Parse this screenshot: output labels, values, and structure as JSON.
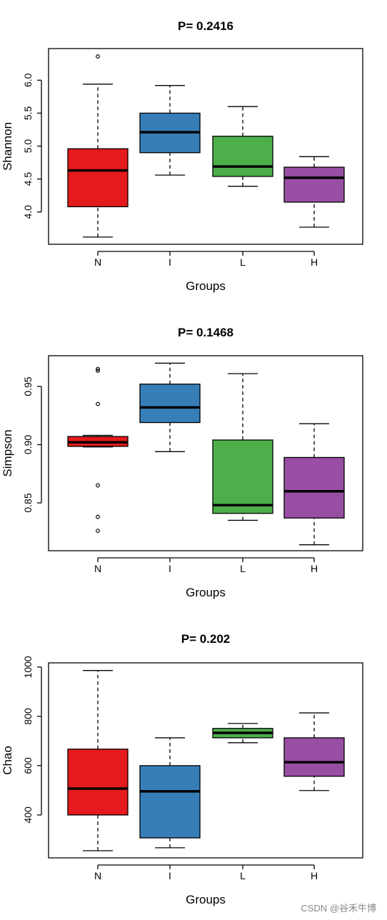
{
  "chart_data": [
    {
      "type": "box",
      "title": "P= 0.2416",
      "y_label": "Shannon",
      "x_label": "Groups",
      "categories": [
        "N",
        "I",
        "L",
        "H"
      ],
      "colors": [
        "#e41a1c",
        "#377eb8",
        "#4daf4a",
        "#984ea3"
      ],
      "whisker_low": [
        3.62,
        4.56,
        4.39,
        3.77
      ],
      "q1": [
        4.08,
        4.9,
        4.54,
        4.15
      ],
      "median": [
        4.63,
        5.21,
        4.69,
        4.52
      ],
      "q3": [
        4.96,
        5.5,
        5.15,
        4.68
      ],
      "whisker_high": [
        5.94,
        5.92,
        5.6,
        4.84
      ],
      "outliers": [
        [
          6.36
        ],
        [],
        [],
        []
      ],
      "ylim": [
        3.51,
        6.48
      ],
      "yticks": [
        {
          "value": 4,
          "label": "4.0"
        },
        4.5,
        {
          "value": 5,
          "label": "5.0"
        },
        5.5,
        {
          "value": 6,
          "label": "6.0"
        }
      ]
    },
    {
      "type": "box",
      "title": "P= 0.1468",
      "y_label": "Simpson",
      "x_label": "Groups",
      "categories": [
        "N",
        "I",
        "L",
        "H"
      ],
      "colors": [
        "#e41a1c",
        "#377eb8",
        "#4daf4a",
        "#984ea3"
      ],
      "whisker_low": [
        0.898,
        0.894,
        0.835,
        0.814
      ],
      "q1": [
        0.8985,
        0.919,
        0.841,
        0.837
      ],
      "median": [
        0.902,
        0.932,
        0.848,
        0.86
      ],
      "q3": [
        0.907,
        0.952,
        0.904,
        0.889
      ],
      "whisker_high": [
        0.908,
        0.97,
        0.961,
        0.918
      ],
      "outliers": [
        [
          0.965,
          0.9635,
          0.935,
          0.865,
          0.838,
          0.826
        ],
        [],
        [],
        []
      ],
      "ylim": [
        0.8089,
        0.9764
      ],
      "yticks": [
        0.85,
        {
          "value": 0.9,
          "label": "0.90"
        },
        0.95
      ]
    },
    {
      "type": "box",
      "title": "P= 0.202",
      "y_label": "Chao",
      "x_label": "Groups",
      "categories": [
        "N",
        "I",
        "L",
        "H"
      ],
      "colors": [
        "#e41a1c",
        "#377eb8",
        "#4daf4a",
        "#984ea3"
      ],
      "whisker_low": [
        255,
        267,
        693,
        499
      ],
      "q1": [
        400,
        307,
        713,
        557
      ],
      "median": [
        507,
        496,
        733,
        614
      ],
      "q3": [
        667,
        600,
        751,
        713
      ],
      "whisker_high": [
        986,
        713,
        771,
        814
      ],
      "outliers": [
        [],
        [],
        [],
        []
      ],
      "ylim": [
        226,
        1017
      ],
      "yticks": [
        400,
        600,
        800,
        1000
      ]
    }
  ],
  "watermark": "CSDN @谷禾牛博"
}
